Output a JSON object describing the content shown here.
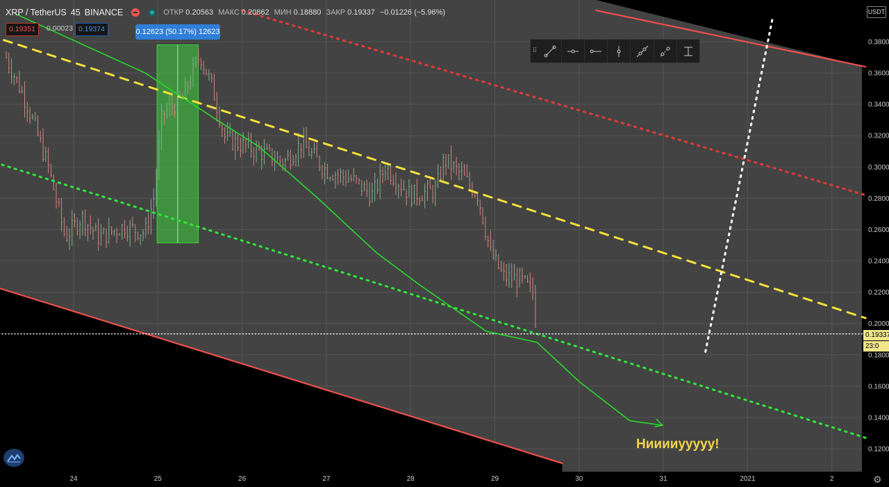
{
  "header": {
    "symbol": "XRP / TetherUS",
    "interval": "45",
    "exchange": "BINANCE",
    "ohlc_labels": {
      "open": "ОТКР",
      "high": "МАКС",
      "low": "МИН",
      "close": "ЗАКР"
    },
    "open": "0.20563",
    "high": "0.20862",
    "low": "0.18880",
    "close": "0.19337",
    "change": "−0.01226 (−5.96%)",
    "sell_price": "0.19351",
    "spread": "0.00023",
    "buy_price": "0.19374"
  },
  "measure_label": "0.12623 (50.17%) 12623",
  "annotation_text": "Нииииууууу!",
  "scale_currency": "USDT",
  "current_price_label": "0.19337",
  "countdown_label": "23:0",
  "icons": {
    "toolbar": [
      "grip-icon",
      "trend-line-icon",
      "horizontal-ray-icon",
      "horizontal-line-icon",
      "vertical-line-icon",
      "extended-line-icon",
      "trend-angle-icon",
      "price-range-icon"
    ],
    "logo": "tradingview-logo-icon",
    "settings": "gear-icon"
  },
  "colors": {
    "background": "#434343",
    "channel_line": "#f0504c",
    "yellow_dashed": "#f5e03a",
    "red_dotted": "#e53935",
    "green_dotted": "#2ee83a",
    "green_arrow": "#29d82c",
    "measure_box": "#3fd03f",
    "white_dotted": "#ffffff",
    "candle_up": "#7fb38a",
    "candle_down": "#d4857f"
  },
  "chart_data": {
    "type": "candlestick",
    "x_ticks": [
      "24",
      "25",
      "26",
      "27",
      "28",
      "29",
      "30",
      "31",
      "2021",
      "2"
    ],
    "y_ticks": [
      "0.38000",
      "0.36000",
      "0.34000",
      "0.32000",
      "0.30000",
      "0.28000",
      "0.26000",
      "0.24000",
      "0.22000",
      "0.20000",
      "0.18000",
      "0.16000",
      "0.14000",
      "0.12000"
    ],
    "ylim": [
      0.109,
      0.398
    ],
    "current_price": 0.19337,
    "price_path": [
      {
        "t": 23.2,
        "p": 0.37
      },
      {
        "t": 23.45,
        "p": 0.34
      },
      {
        "t": 23.7,
        "p": 0.3
      },
      {
        "t": 23.9,
        "p": 0.255
      },
      {
        "t": 24.1,
        "p": 0.268
      },
      {
        "t": 24.3,
        "p": 0.255
      },
      {
        "t": 24.6,
        "p": 0.262
      },
      {
        "t": 24.85,
        "p": 0.258
      },
      {
        "t": 24.95,
        "p": 0.28
      },
      {
        "t": 25.05,
        "p": 0.333
      },
      {
        "t": 25.3,
        "p": 0.345
      },
      {
        "t": 25.5,
        "p": 0.372
      },
      {
        "t": 25.65,
        "p": 0.35
      },
      {
        "t": 25.8,
        "p": 0.318
      },
      {
        "t": 26.1,
        "p": 0.312
      },
      {
        "t": 26.5,
        "p": 0.303
      },
      {
        "t": 26.7,
        "p": 0.315
      },
      {
        "t": 27.0,
        "p": 0.298
      },
      {
        "t": 27.3,
        "p": 0.292
      },
      {
        "t": 27.55,
        "p": 0.282
      },
      {
        "t": 27.7,
        "p": 0.3
      },
      {
        "t": 28.0,
        "p": 0.282
      },
      {
        "t": 28.3,
        "p": 0.285
      },
      {
        "t": 28.4,
        "p": 0.305
      },
      {
        "t": 28.6,
        "p": 0.295
      },
      {
        "t": 28.8,
        "p": 0.282
      },
      {
        "t": 28.95,
        "p": 0.245
      },
      {
        "t": 29.1,
        "p": 0.23
      },
      {
        "t": 29.3,
        "p": 0.228
      },
      {
        "t": 29.45,
        "p": 0.22
      },
      {
        "t": 29.5,
        "p": 0.193
      }
    ],
    "trend_lines": [
      {
        "name": "channel_upper",
        "style": "solid",
        "color": "channel_line",
        "from": [
          30.2,
          0.4
        ],
        "to": [
          33.4,
          0.364
        ]
      },
      {
        "name": "channel_lower",
        "style": "solid",
        "color": "channel_line",
        "from": [
          23.0,
          0.2245
        ],
        "to": [
          29.8,
          0.1107
        ]
      },
      {
        "name": "red_dotted",
        "style": "dotted",
        "color": "red_dotted",
        "from": [
          26.0,
          0.4
        ],
        "to": [
          33.4,
          0.282
        ]
      },
      {
        "name": "yellow_dashed",
        "style": "dashed",
        "color": "yellow_dashed",
        "from": [
          23.0,
          0.384
        ],
        "to": [
          33.4,
          0.2035
        ]
      },
      {
        "name": "green_dotted",
        "style": "dotted",
        "color": "green_dotted",
        "from": [
          23.0,
          0.304
        ],
        "to": [
          33.4,
          0.127
        ]
      },
      {
        "name": "white_dotted",
        "style": "dotted",
        "color": "white_dotted",
        "from": [
          31.5,
          0.182
        ],
        "to": [
          32.3,
          0.396
        ]
      },
      {
        "name": "current_price",
        "style": "dotted",
        "color": "white_dotted",
        "from": [
          23.0,
          0.19337
        ],
        "to": [
          33.4,
          0.19337
        ]
      }
    ],
    "green_arrow": [
      [
        23.3,
        0.398
      ],
      [
        24.85,
        0.36
      ],
      [
        25.7,
        0.33
      ],
      [
        26.2,
        0.313
      ],
      [
        26.9,
        0.28
      ],
      [
        27.6,
        0.245
      ],
      [
        28.1,
        0.225
      ],
      [
        28.9,
        0.195
      ],
      [
        29.5,
        0.188
      ],
      [
        30.0,
        0.163
      ],
      [
        30.6,
        0.138
      ],
      [
        30.99,
        0.135
      ]
    ],
    "measure_range": {
      "t_start": 24.99,
      "t_end": 25.48,
      "p_low": 0.2515,
      "p_high": 0.378
    }
  }
}
